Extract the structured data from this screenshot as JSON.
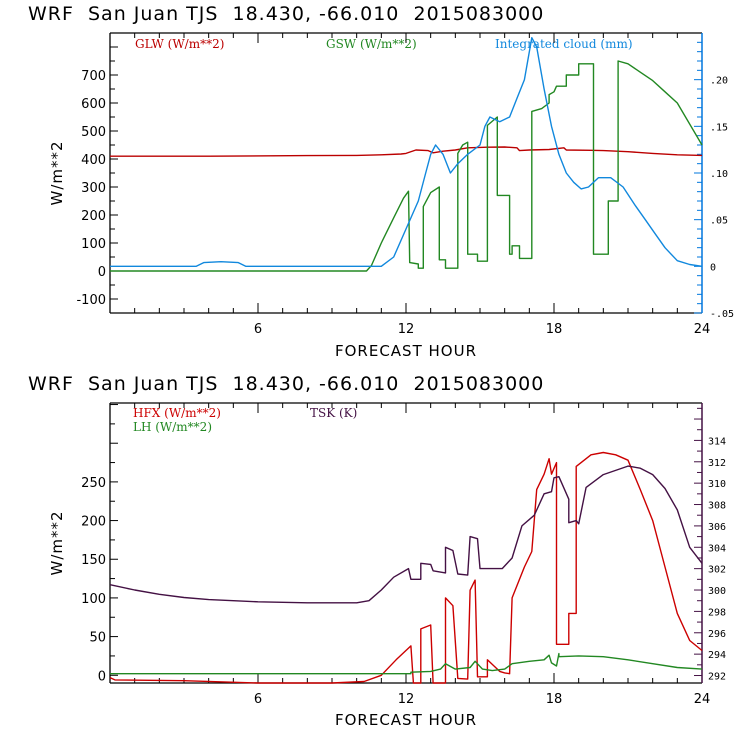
{
  "chart_data": [
    {
      "type": "line",
      "title": "WRF  San Juan TJS  18.430, -66.010  2015083000",
      "xlabel": "FORECAST HOUR",
      "ylabel": "W/m**2",
      "xlim": [
        0,
        24
      ],
      "ylim": [
        -150,
        850
      ],
      "y2lim": [
        -0.05,
        0.25
      ],
      "x_ticks": [
        6,
        12,
        18,
        24
      ],
      "y_ticks": [
        -100,
        0,
        100,
        200,
        300,
        400,
        500,
        600,
        700
      ],
      "y_tick_labels": [
        "-100",
        "0",
        "100",
        "200",
        "300",
        "400",
        "500",
        "600",
        "700"
      ],
      "y2_ticks": [
        -0.05,
        0,
        0.05,
        0.1,
        0.15,
        0.2
      ],
      "y2_tick_labels": [
        "-.05",
        "0",
        ".05",
        ".10",
        ".15",
        ".20"
      ],
      "axis_color": "#0077dd",
      "series": [
        {
          "name": "GLW (W/m**2)",
          "axis": "left",
          "color": "#bb0000",
          "points": [
            [
              0,
              410
            ],
            [
              4,
              410
            ],
            [
              8,
              412
            ],
            [
              10,
              413
            ],
            [
              11,
              415
            ],
            [
              11.8,
              418
            ],
            [
              12,
              420
            ],
            [
              12.4,
              432
            ],
            [
              12.9,
              430
            ],
            [
              13.1,
              422
            ],
            [
              13.5,
              428
            ],
            [
              14,
              432
            ],
            [
              14.5,
              440
            ],
            [
              15.3,
              442
            ],
            [
              16,
              443
            ],
            [
              16.5,
              440
            ],
            [
              16.6,
              430
            ],
            [
              17,
              432
            ],
            [
              17.8,
              434
            ],
            [
              18.4,
              440
            ],
            [
              18.5,
              432
            ],
            [
              19.5,
              431
            ],
            [
              20,
              430
            ],
            [
              21,
              426
            ],
            [
              22,
              420
            ],
            [
              23,
              415
            ],
            [
              24,
              413
            ]
          ]
        },
        {
          "name": "GSW (W/m**2)",
          "axis": "left",
          "color": "#228822",
          "points": [
            [
              0,
              0
            ],
            [
              10.4,
              0
            ],
            [
              10.6,
              20
            ],
            [
              11,
              100
            ],
            [
              11.5,
              190
            ],
            [
              11.9,
              260
            ],
            [
              12.1,
              285
            ],
            [
              12.15,
              30
            ],
            [
              12.5,
              25
            ],
            [
              12.5,
              10
            ],
            [
              12.7,
              10
            ],
            [
              12.7,
              230
            ],
            [
              13,
              280
            ],
            [
              13.35,
              300
            ],
            [
              13.35,
              40
            ],
            [
              13.6,
              40
            ],
            [
              13.6,
              10
            ],
            [
              14.1,
              10
            ],
            [
              14.1,
              420
            ],
            [
              14.3,
              450
            ],
            [
              14.5,
              460
            ],
            [
              14.5,
              60
            ],
            [
              14.9,
              60
            ],
            [
              14.9,
              35
            ],
            [
              15.3,
              35
            ],
            [
              15.3,
              520
            ],
            [
              15.7,
              550
            ],
            [
              15.7,
              270
            ],
            [
              16.2,
              270
            ],
            [
              16.2,
              60
            ],
            [
              16.3,
              60
            ],
            [
              16.3,
              90
            ],
            [
              16.6,
              90
            ],
            [
              16.6,
              45
            ],
            [
              17.1,
              45
            ],
            [
              17.1,
              570
            ],
            [
              17.5,
              580
            ],
            [
              17.8,
              600
            ],
            [
              17.8,
              630
            ],
            [
              18,
              640
            ],
            [
              18.1,
              660
            ],
            [
              18.5,
              660
            ],
            [
              18.5,
              700
            ],
            [
              19,
              700
            ],
            [
              19,
              740
            ],
            [
              19.6,
              740
            ],
            [
              19.6,
              60
            ],
            [
              20.2,
              60
            ],
            [
              20.2,
              250
            ],
            [
              20.6,
              250
            ],
            [
              20.6,
              750
            ],
            [
              21,
              740
            ],
            [
              21.5,
              710
            ],
            [
              22,
              680
            ],
            [
              22.5,
              640
            ],
            [
              23,
              600
            ],
            [
              24,
              450
            ]
          ]
        },
        {
          "name": "Integrated cloud (mm)",
          "axis": "right",
          "color": "#1188dd",
          "points": [
            [
              0,
              0
            ],
            [
              3.5,
              0
            ],
            [
              3.8,
              0.004
            ],
            [
              4.5,
              0.005
            ],
            [
              5.2,
              0.004
            ],
            [
              5.5,
              0
            ],
            [
              11,
              0
            ],
            [
              11.5,
              0.01
            ],
            [
              12,
              0.04
            ],
            [
              12.5,
              0.07
            ],
            [
              12.8,
              0.1
            ],
            [
              13,
              0.12
            ],
            [
              13.2,
              0.13
            ],
            [
              13.5,
              0.12
            ],
            [
              13.8,
              0.1
            ],
            [
              14.1,
              0.11
            ],
            [
              14.5,
              0.12
            ],
            [
              15,
              0.13
            ],
            [
              15.2,
              0.15
            ],
            [
              15.4,
              0.16
            ],
            [
              15.8,
              0.155
            ],
            [
              16.2,
              0.16
            ],
            [
              16.5,
              0.18
            ],
            [
              16.8,
              0.2
            ],
            [
              17.1,
              0.245
            ],
            [
              17.3,
              0.235
            ],
            [
              17.6,
              0.19
            ],
            [
              17.9,
              0.15
            ],
            [
              18.2,
              0.12
            ],
            [
              18.5,
              0.1
            ],
            [
              18.8,
              0.09
            ],
            [
              19.1,
              0.083
            ],
            [
              19.4,
              0.085
            ],
            [
              19.8,
              0.095
            ],
            [
              20.3,
              0.095
            ],
            [
              20.8,
              0.085
            ],
            [
              21.3,
              0.065
            ],
            [
              21.7,
              0.05
            ],
            [
              22.1,
              0.035
            ],
            [
              22.5,
              0.02
            ],
            [
              23,
              0.006
            ],
            [
              23.5,
              0.002
            ],
            [
              24,
              0
            ]
          ]
        }
      ]
    },
    {
      "type": "line",
      "title": "WRF  San Juan TJS  18.430, -66.010  2015083000",
      "xlabel": "FORECAST HOUR",
      "ylabel": "W/m**2",
      "xlim": [
        0,
        24
      ],
      "ylim": [
        -10,
        352
      ],
      "y2lim": [
        291.3,
        317.5
      ],
      "x_ticks": [
        6,
        12,
        18,
        24
      ],
      "y_ticks": [
        0,
        50,
        100,
        150,
        200,
        250
      ],
      "y_tick_labels": [
        "0",
        "50",
        "100",
        "150",
        "200",
        "250"
      ],
      "y2_ticks": [
        292,
        294,
        296,
        298,
        300,
        302,
        304,
        306,
        308,
        310,
        312,
        314
      ],
      "y2_tick_labels": [
        "292",
        "294",
        "296",
        "298",
        "300",
        "302",
        "304",
        "306",
        "308",
        "310",
        "312",
        "314"
      ],
      "axis_color": "#441144",
      "series": [
        {
          "name": "HFX (W/m**2)",
          "axis": "left",
          "color": "#cc0000",
          "points": [
            [
              0,
              -3
            ],
            [
              0.2,
              -6
            ],
            [
              3,
              -7
            ],
            [
              6,
              -10
            ],
            [
              9,
              -10
            ],
            [
              10.3,
              -8
            ],
            [
              11,
              0
            ],
            [
              11.6,
              20
            ],
            [
              12.2,
              38
            ],
            [
              12.3,
              -10
            ],
            [
              12.6,
              -10
            ],
            [
              12.6,
              60
            ],
            [
              13,
              65
            ],
            [
              13.1,
              -12
            ],
            [
              13.6,
              -12
            ],
            [
              13.6,
              100
            ],
            [
              13.9,
              90
            ],
            [
              14.1,
              -4
            ],
            [
              14.5,
              -5
            ],
            [
              14.6,
              110
            ],
            [
              14.8,
              123
            ],
            [
              14.9,
              -2
            ],
            [
              15.3,
              -2
            ],
            [
              15.3,
              20
            ],
            [
              15.8,
              5
            ],
            [
              16,
              3
            ],
            [
              16.2,
              2
            ],
            [
              16.3,
              100
            ],
            [
              16.8,
              140
            ],
            [
              17.1,
              160
            ],
            [
              17.3,
              240
            ],
            [
              17.6,
              260
            ],
            [
              17.8,
              280
            ],
            [
              17.9,
              260
            ],
            [
              18.1,
              275
            ],
            [
              18.1,
              40
            ],
            [
              18.6,
              40
            ],
            [
              18.6,
              80
            ],
            [
              18.9,
              80
            ],
            [
              18.9,
              270
            ],
            [
              19.5,
              285
            ],
            [
              20,
              288
            ],
            [
              20.5,
              285
            ],
            [
              21,
              278
            ],
            [
              21.5,
              240
            ],
            [
              22,
              200
            ],
            [
              22.5,
              140
            ],
            [
              23,
              80
            ],
            [
              23.5,
              45
            ],
            [
              24,
              32
            ]
          ]
        },
        {
          "name": "LH (W/m**2)",
          "axis": "left",
          "color": "#228822",
          "points": [
            [
              0,
              2
            ],
            [
              10.5,
              2
            ],
            [
              12.2,
              2
            ],
            [
              12.2,
              4
            ],
            [
              13,
              5
            ],
            [
              13.4,
              8
            ],
            [
              13.6,
              15
            ],
            [
              14,
              8
            ],
            [
              14.6,
              10
            ],
            [
              14.8,
              18
            ],
            [
              15.1,
              8
            ],
            [
              15.5,
              6
            ],
            [
              16,
              8
            ],
            [
              16.3,
              15
            ],
            [
              17,
              18
            ],
            [
              17.6,
              20
            ],
            [
              17.8,
              26
            ],
            [
              17.9,
              16
            ],
            [
              18.1,
              12
            ],
            [
              18.2,
              28
            ],
            [
              18.2,
              24
            ],
            [
              19,
              25
            ],
            [
              20,
              24
            ],
            [
              21,
              20
            ],
            [
              22,
              15
            ],
            [
              23,
              10
            ],
            [
              24,
              8
            ]
          ]
        },
        {
          "name": "TSK (K)",
          "axis": "right",
          "color": "#441144",
          "points": [
            [
              0,
              300.5
            ],
            [
              1,
              300
            ],
            [
              2,
              299.6
            ],
            [
              3,
              299.3
            ],
            [
              4,
              299.1
            ],
            [
              5,
              299
            ],
            [
              6,
              298.9
            ],
            [
              8,
              298.8
            ],
            [
              10,
              298.8
            ],
            [
              10.5,
              299
            ],
            [
              11,
              300
            ],
            [
              11.5,
              301.2
            ],
            [
              12.1,
              302
            ],
            [
              12.2,
              301
            ],
            [
              12.6,
              301
            ],
            [
              12.6,
              302.5
            ],
            [
              13,
              302.4
            ],
            [
              13.1,
              301.8
            ],
            [
              13.6,
              301.6
            ],
            [
              13.6,
              304
            ],
            [
              13.9,
              303.7
            ],
            [
              14.1,
              301.5
            ],
            [
              14.5,
              301.4
            ],
            [
              14.6,
              305
            ],
            [
              14.9,
              304.8
            ],
            [
              15,
              302
            ],
            [
              15.6,
              302
            ],
            [
              15.9,
              302
            ],
            [
              16.3,
              303
            ],
            [
              16.7,
              306
            ],
            [
              17.2,
              307
            ],
            [
              17.6,
              309
            ],
            [
              17.9,
              309.2
            ],
            [
              18,
              310.5
            ],
            [
              18.2,
              310.6
            ],
            [
              18.6,
              308.5
            ],
            [
              18.6,
              306.3
            ],
            [
              18.9,
              306.5
            ],
            [
              19,
              306.2
            ],
            [
              19.3,
              309.6
            ],
            [
              20,
              310.8
            ],
            [
              21,
              311.6
            ],
            [
              21.5,
              311.4
            ],
            [
              22,
              310.8
            ],
            [
              22.5,
              309.5
            ],
            [
              23,
              307.5
            ],
            [
              23.5,
              304
            ],
            [
              24,
              302.5
            ]
          ]
        }
      ]
    }
  ]
}
